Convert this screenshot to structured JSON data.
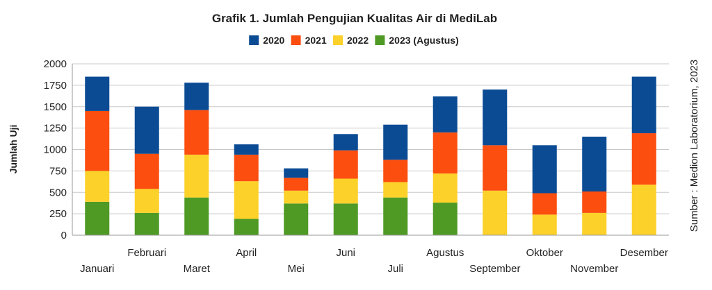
{
  "chart_data": {
    "type": "bar",
    "stacked": true,
    "title": "Grafik 1. Jumlah Pengujian Kualitas Air di MediLab",
    "ylabel": "Jumlah Uji",
    "xlabel": "",
    "ylim": [
      0,
      2000
    ],
    "yticks": [
      0,
      250,
      500,
      750,
      1000,
      1250,
      1500,
      1750,
      2000
    ],
    "grid": true,
    "legend_position": "top",
    "source": "Sumber : Medion Laboratorium, 2023",
    "categories": [
      "Januari",
      "Februari",
      "Maret",
      "April",
      "Mei",
      "Juni",
      "Juli",
      "Agustus",
      "September",
      "Oktober",
      "November",
      "Desember"
    ],
    "series": [
      {
        "name": "2023 (Agustus)",
        "color": "#4e9a25",
        "values": [
          390,
          260,
          440,
          190,
          370,
          370,
          440,
          380,
          0,
          0,
          0,
          0
        ]
      },
      {
        "name": "2022",
        "color": "#fcd12a",
        "values": [
          360,
          280,
          500,
          440,
          150,
          290,
          180,
          340,
          520,
          240,
          260,
          590
        ]
      },
      {
        "name": "2021",
        "color": "#fb4e0f",
        "values": [
          700,
          410,
          520,
          310,
          150,
          330,
          260,
          480,
          530,
          250,
          250,
          600
        ]
      },
      {
        "name": "2020",
        "color": "#0b4b94",
        "values": [
          400,
          550,
          320,
          120,
          110,
          190,
          410,
          420,
          650,
          560,
          640,
          660
        ]
      }
    ],
    "legend_order": [
      "2020",
      "2021",
      "2022",
      "2023 (Agustus)"
    ]
  }
}
